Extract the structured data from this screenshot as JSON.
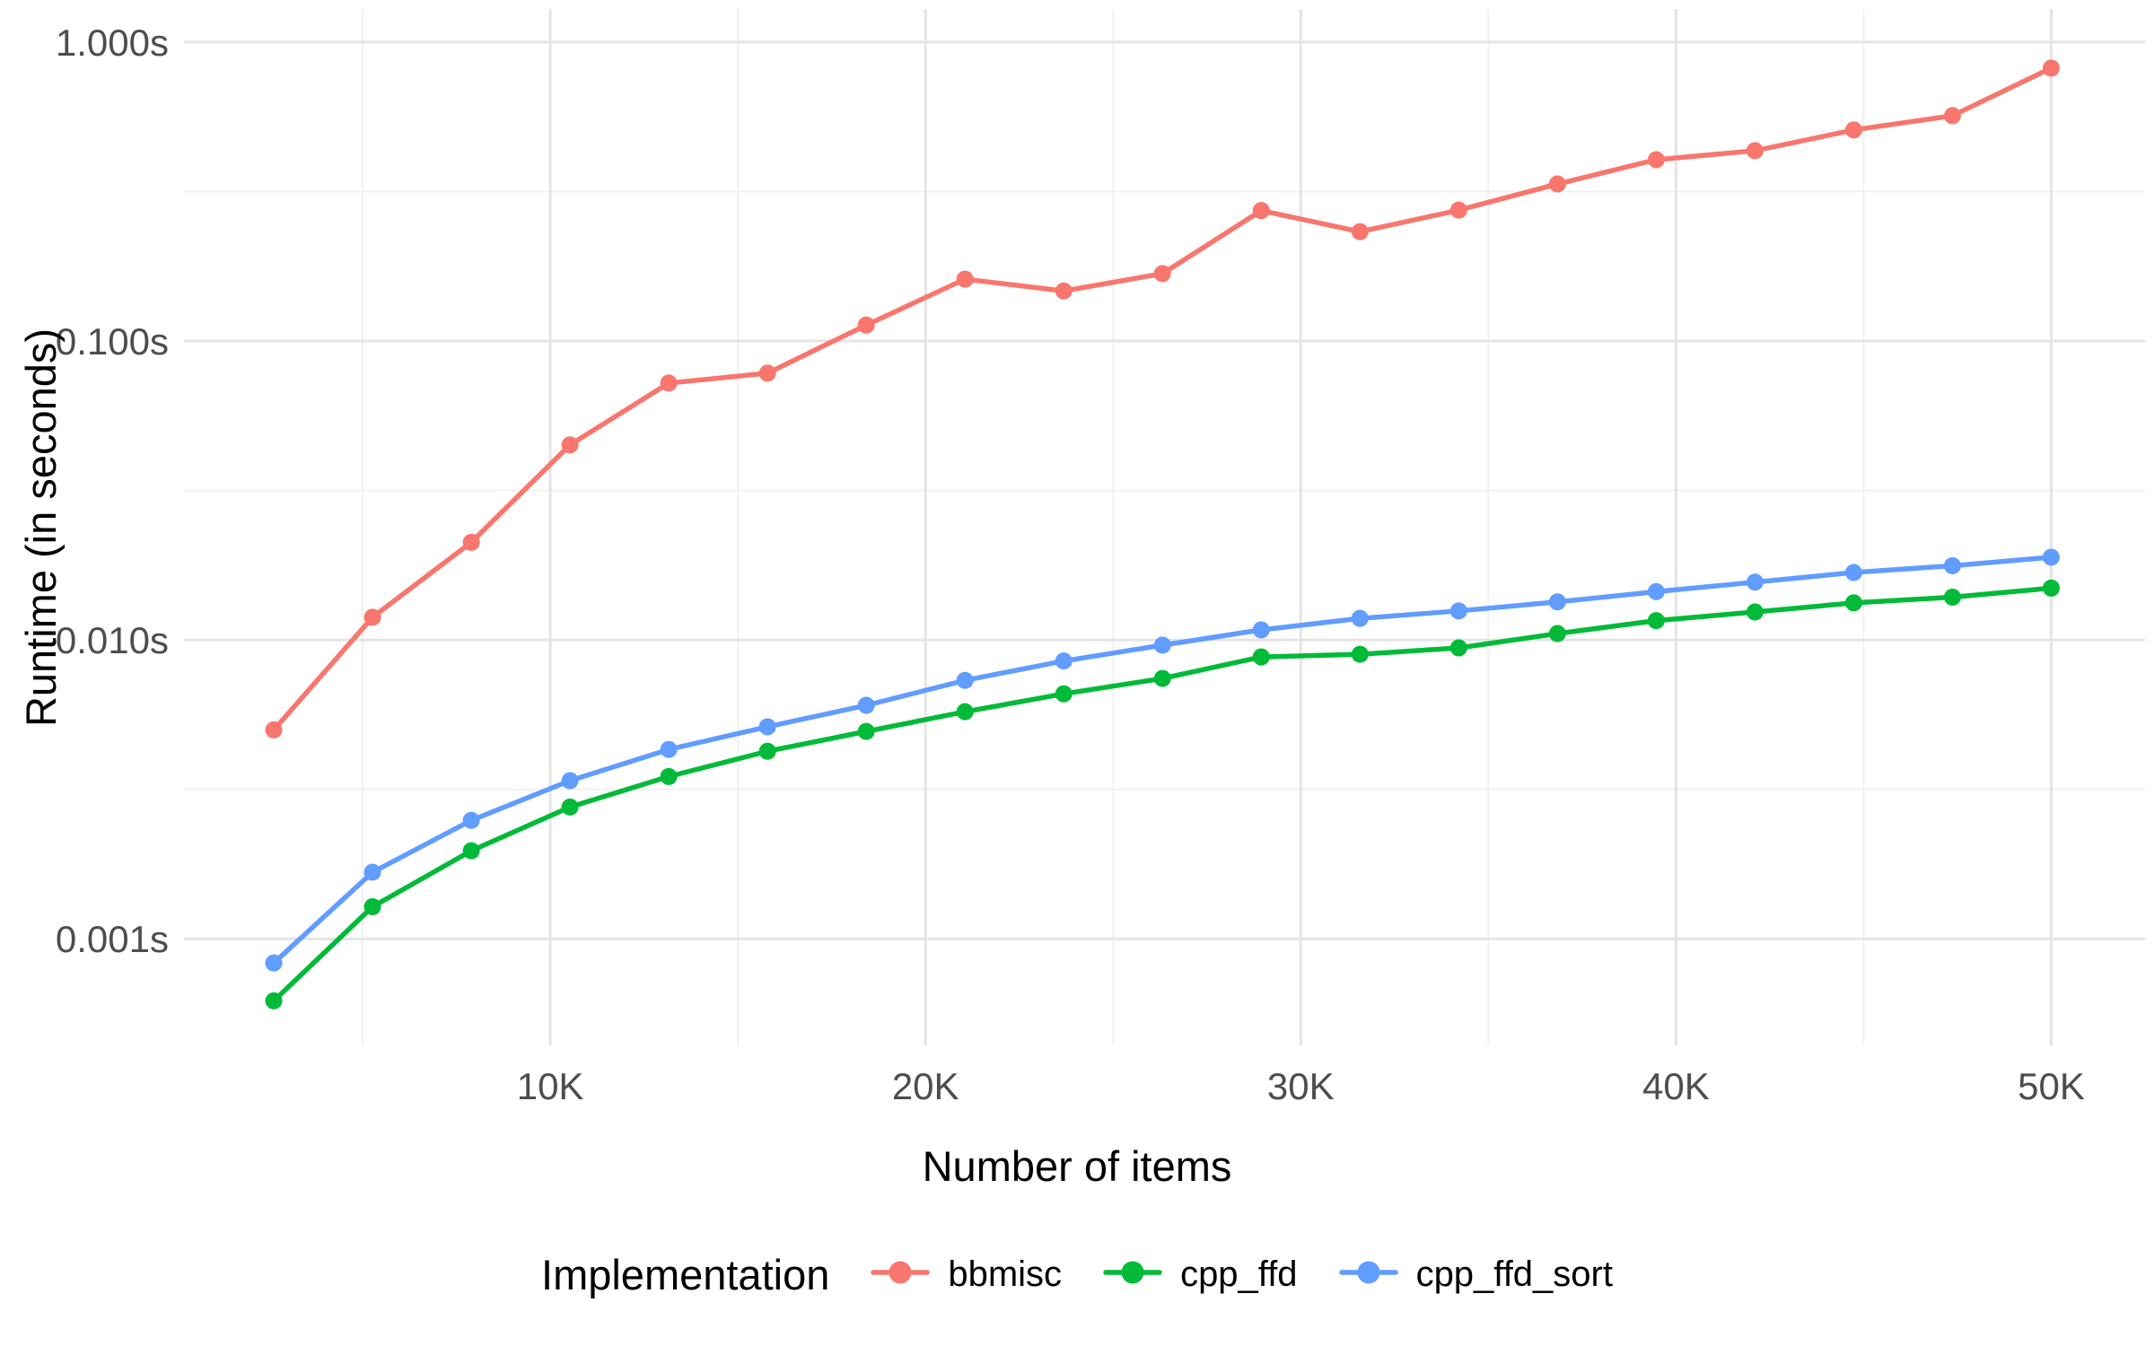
{
  "chart_data": {
    "type": "line",
    "title": "",
    "xlabel": "Number of items",
    "ylabel": "Runtime (in seconds)",
    "legend_title": "Implementation",
    "legend_position": "bottom",
    "grid": true,
    "x_scale": "linear",
    "y_scale": "log10",
    "x_ticks": [
      {
        "value": 10000,
        "label": "10K"
      },
      {
        "value": 20000,
        "label": "20K"
      },
      {
        "value": 30000,
        "label": "30K"
      },
      {
        "value": 40000,
        "label": "40K"
      },
      {
        "value": 50000,
        "label": "50K"
      }
    ],
    "x_minor_ticks": [
      5000,
      15000,
      25000,
      35000,
      45000
    ],
    "y_ticks": [
      {
        "value": 1.0,
        "label": "1.000s"
      },
      {
        "value": 0.1,
        "label": "0.100s"
      },
      {
        "value": 0.01,
        "label": "0.010s"
      },
      {
        "value": 0.001,
        "label": "0.001s"
      }
    ],
    "y_minor_ticks": [
      0.3162,
      0.03162,
      0.003162
    ],
    "x_domain": [
      239,
      52500
    ],
    "y_domain": [
      0.00044,
      1.29
    ],
    "x": [
      2632,
      5263,
      7895,
      10526,
      13158,
      15789,
      18421,
      21053,
      23684,
      26316,
      28947,
      31579,
      34211,
      36842,
      39474,
      42105,
      44737,
      47368,
      50000
    ],
    "series": [
      {
        "name": "bbmisc",
        "color": "#F8766D",
        "values": [
          0.005,
          0.0119,
          0.0212,
          0.0449,
          0.0723,
          0.078,
          0.113,
          0.161,
          0.147,
          0.168,
          0.273,
          0.232,
          0.274,
          0.335,
          0.404,
          0.433,
          0.508,
          0.567,
          0.818
        ]
      },
      {
        "name": "cpp_ffd",
        "color": "#00BA38",
        "values": [
          0.00062,
          0.00128,
          0.00197,
          0.00276,
          0.00349,
          0.00424,
          0.00494,
          0.00575,
          0.0066,
          0.00743,
          0.00877,
          0.00895,
          0.0094,
          0.0105,
          0.0116,
          0.0124,
          0.0133,
          0.0139,
          0.0149
        ]
      },
      {
        "name": "cpp_ffd_sort",
        "color": "#619CFF",
        "values": [
          0.00083,
          0.00167,
          0.00249,
          0.00338,
          0.0043,
          0.00512,
          0.00604,
          0.00732,
          0.0085,
          0.0096,
          0.0108,
          0.0118,
          0.0125,
          0.0134,
          0.0145,
          0.0156,
          0.0168,
          0.0177,
          0.0189
        ]
      }
    ],
    "style": {
      "major_grid_color": "#E4E4E4",
      "minor_grid_color": "#F0F0F0",
      "tick_label_color": "#4d4d4d",
      "background": "#ffffff"
    }
  }
}
